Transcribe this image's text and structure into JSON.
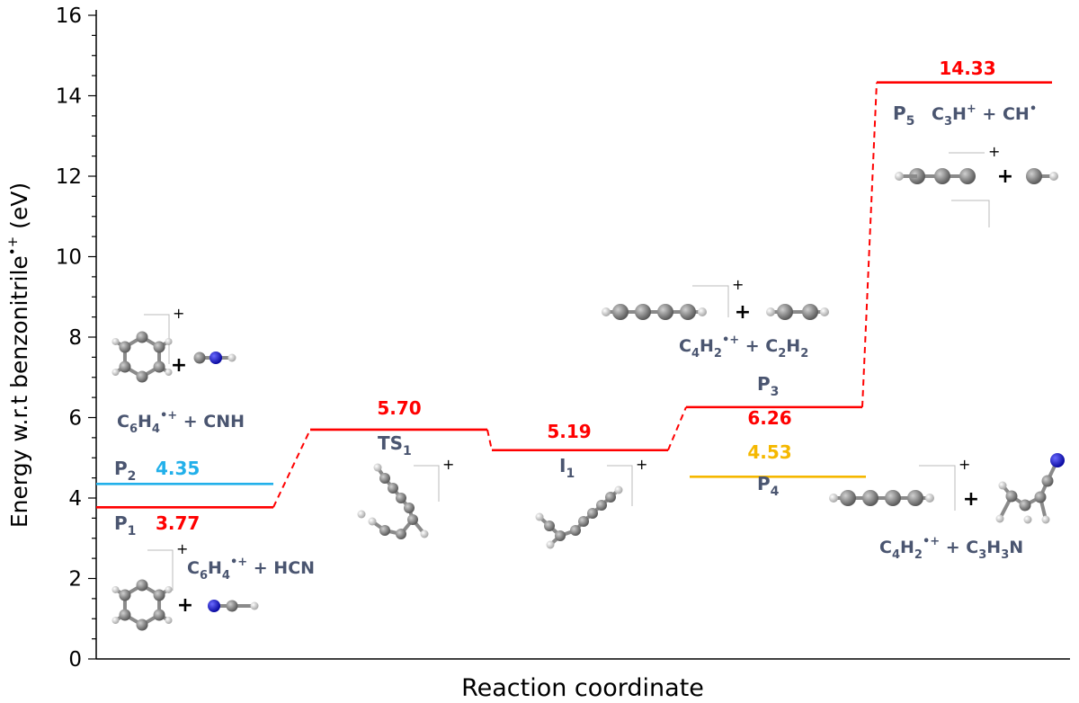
{
  "chart_data": {
    "type": "energy-level-diagram",
    "ylabel": "Energy w.r.t benzonitrile",
    "ylabel_sup": "•+",
    "ylabel_unit": " (eV)",
    "xlabel": "Reaction coordinate",
    "ylim": [
      0,
      16
    ],
    "yticks": [
      "0",
      "2",
      "4",
      "6",
      "8",
      "10",
      "12",
      "14",
      "16"
    ],
    "levels": [
      {
        "name": "P1",
        "label_main": "P",
        "label_sub": "1",
        "value": 3.77,
        "value_text": "3.77",
        "color": "#ff0000",
        "value_color": "#ff0000"
      },
      {
        "name": "P2",
        "label_main": "P",
        "label_sub": "2",
        "value": 4.35,
        "value_text": "4.35",
        "color": "#22b0ea",
        "value_color": "#22b0ea"
      },
      {
        "name": "TS1",
        "label_main": "TS",
        "label_sub": "1",
        "value": 5.7,
        "value_text": "5.70",
        "color": "#ff0000",
        "value_color": "#ff0000"
      },
      {
        "name": "I1",
        "label_main": "I",
        "label_sub": "1",
        "value": 5.19,
        "value_text": "5.19",
        "color": "#ff0000",
        "value_color": "#ff0000"
      },
      {
        "name": "P3",
        "label_main": "P",
        "label_sub": "3",
        "value": 6.26,
        "value_text": "6.26",
        "color": "#ff0000",
        "value_color": "#ff0000"
      },
      {
        "name": "P4",
        "label_main": "P",
        "label_sub": "4",
        "value": 4.53,
        "value_text": "4.53",
        "color": "#f5b800",
        "value_color": "#f5b800"
      },
      {
        "name": "P5",
        "label_main": "P",
        "label_sub": "5",
        "value": 14.33,
        "value_text": "14.33",
        "color": "#ff0000",
        "value_color": "#ff0000"
      }
    ],
    "connectors": [
      {
        "from": "P1",
        "to": "TS1",
        "style": "dashed"
      },
      {
        "from": "TS1",
        "to": "I1",
        "style": "dashed"
      },
      {
        "from": "I1",
        "to": "P3",
        "style": "dashed"
      },
      {
        "from": "P3",
        "to": "P5",
        "style": "dashed"
      }
    ],
    "species": {
      "p1": {
        "parts": [
          "C",
          "6",
          "H",
          "4",
          "•+",
          " + HCN"
        ]
      },
      "p2": {
        "parts": [
          "C",
          "6",
          "H",
          "4",
          "•+",
          " + CNH"
        ]
      },
      "p3": {
        "parts": [
          "C",
          "4",
          "H",
          "2",
          "•+",
          " + C",
          "2",
          "H",
          "2"
        ]
      },
      "p4": {
        "parts": [
          "C",
          "4",
          "H",
          "2",
          "•+",
          " + C",
          "3",
          "H",
          "3",
          "N"
        ]
      },
      "p5": {
        "parts": [
          "C",
          "3",
          "H",
          "+",
          " + CH",
          "•"
        ]
      }
    },
    "charge_mark": "+",
    "plus_sign": "+"
  }
}
